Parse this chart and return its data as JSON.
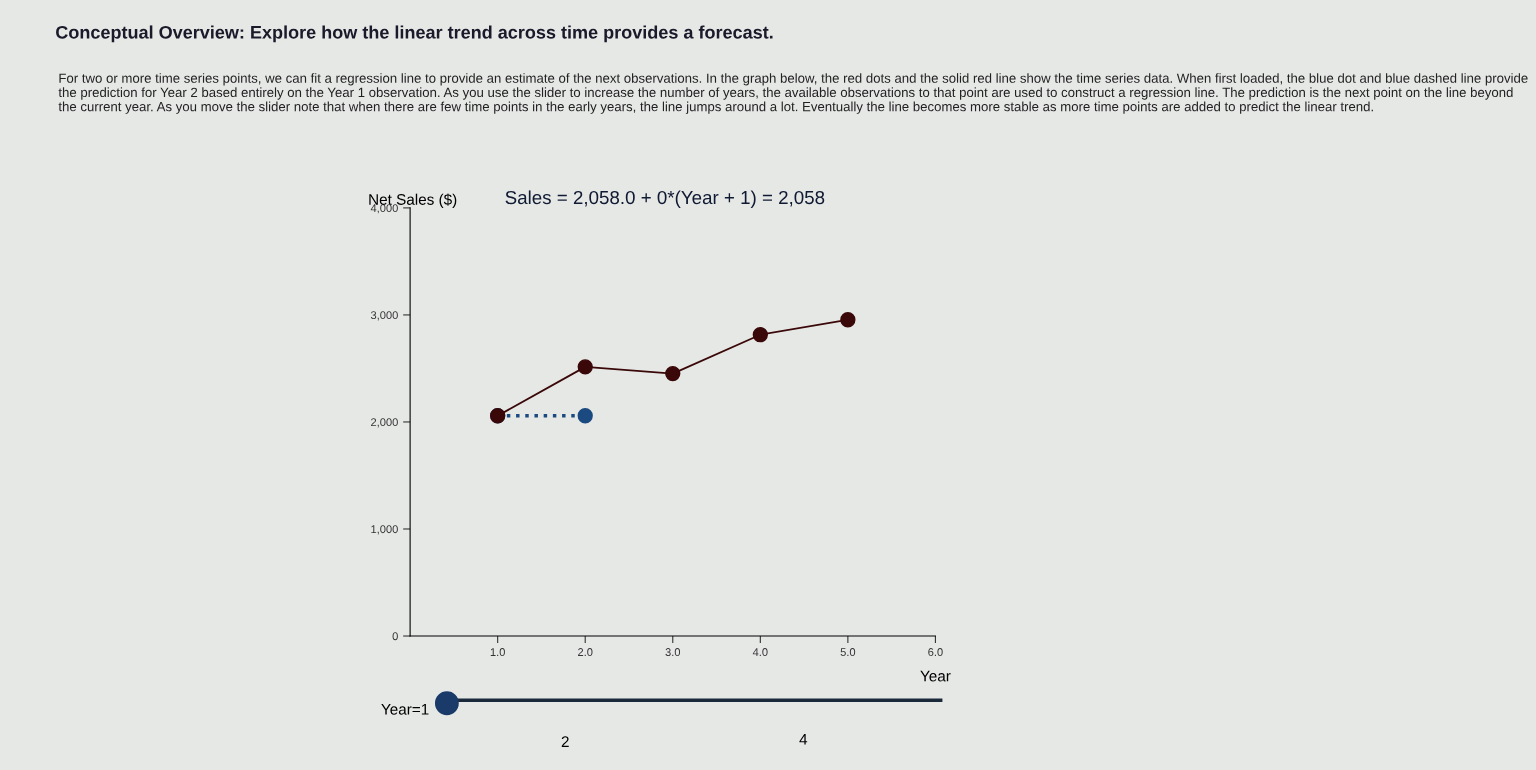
{
  "chart_data": {
    "type": "line",
    "title": "Conceptual Overview: Explore how the linear trend across time provides a forecast.",
    "subtitle": "For two or more time series points, we can fit a regression line to provide an estimate of the next observations. In the graph below, the red dots and the solid red line show the time series data. When first loaded, the blue dot and blue dashed line provide the prediction for Year 2 based entirely on the Year 1 observation. As you use the slider to increase the number of years, the available observations to that point are used to construct a regression line. The prediction is the next point on the line beyond the current year. As you move the slider note that when there are few time points in the early years, the line jumps around a lot. Eventually the line becomes more stable as more time points are added to predict the linear trend.",
    "xlabel": "Year",
    "ylabel": "Net Sales ($)",
    "annotations": [
      "Sales = 2,058.0 + 0*(Year + 1) = 2,058",
      "Year=1",
      "2",
      "4"
    ],
    "series": [
      {
        "x": [
          1,
          2,
          3,
          4,
          5
        ],
        "values": [
          2058,
          2515,
          2452,
          2815,
          2955
        ],
        "color": "#3a0808",
        "marker": "circle",
        "line_style": "solid"
      },
      {
        "x": [
          1,
          2
        ],
        "values": [
          2058,
          2058
        ],
        "color": "#1a4a80",
        "marker": "circle",
        "line_style": "dotted"
      }
    ],
    "xlim": [
      0,
      6
    ],
    "xticks": [
      {
        "value": 1,
        "label": "1.0"
      },
      {
        "value": 2,
        "label": "2.0"
      },
      {
        "value": 3,
        "label": "3.0"
      },
      {
        "value": 4,
        "label": "4.0"
      },
      {
        "value": 5,
        "label": "5.0"
      },
      {
        "value": 6,
        "label": "6.0"
      }
    ],
    "ylim": [
      0,
      4000
    ],
    "yticks": [
      0,
      {
        "value": 1000,
        "label": "1,000"
      },
      {
        "value": 2000,
        "label": "2,000"
      },
      {
        "value": 3000,
        "label": "3,000"
      },
      {
        "value": 4000,
        "label": "4,000"
      }
    ],
    "grid": false,
    "legend": false
  }
}
